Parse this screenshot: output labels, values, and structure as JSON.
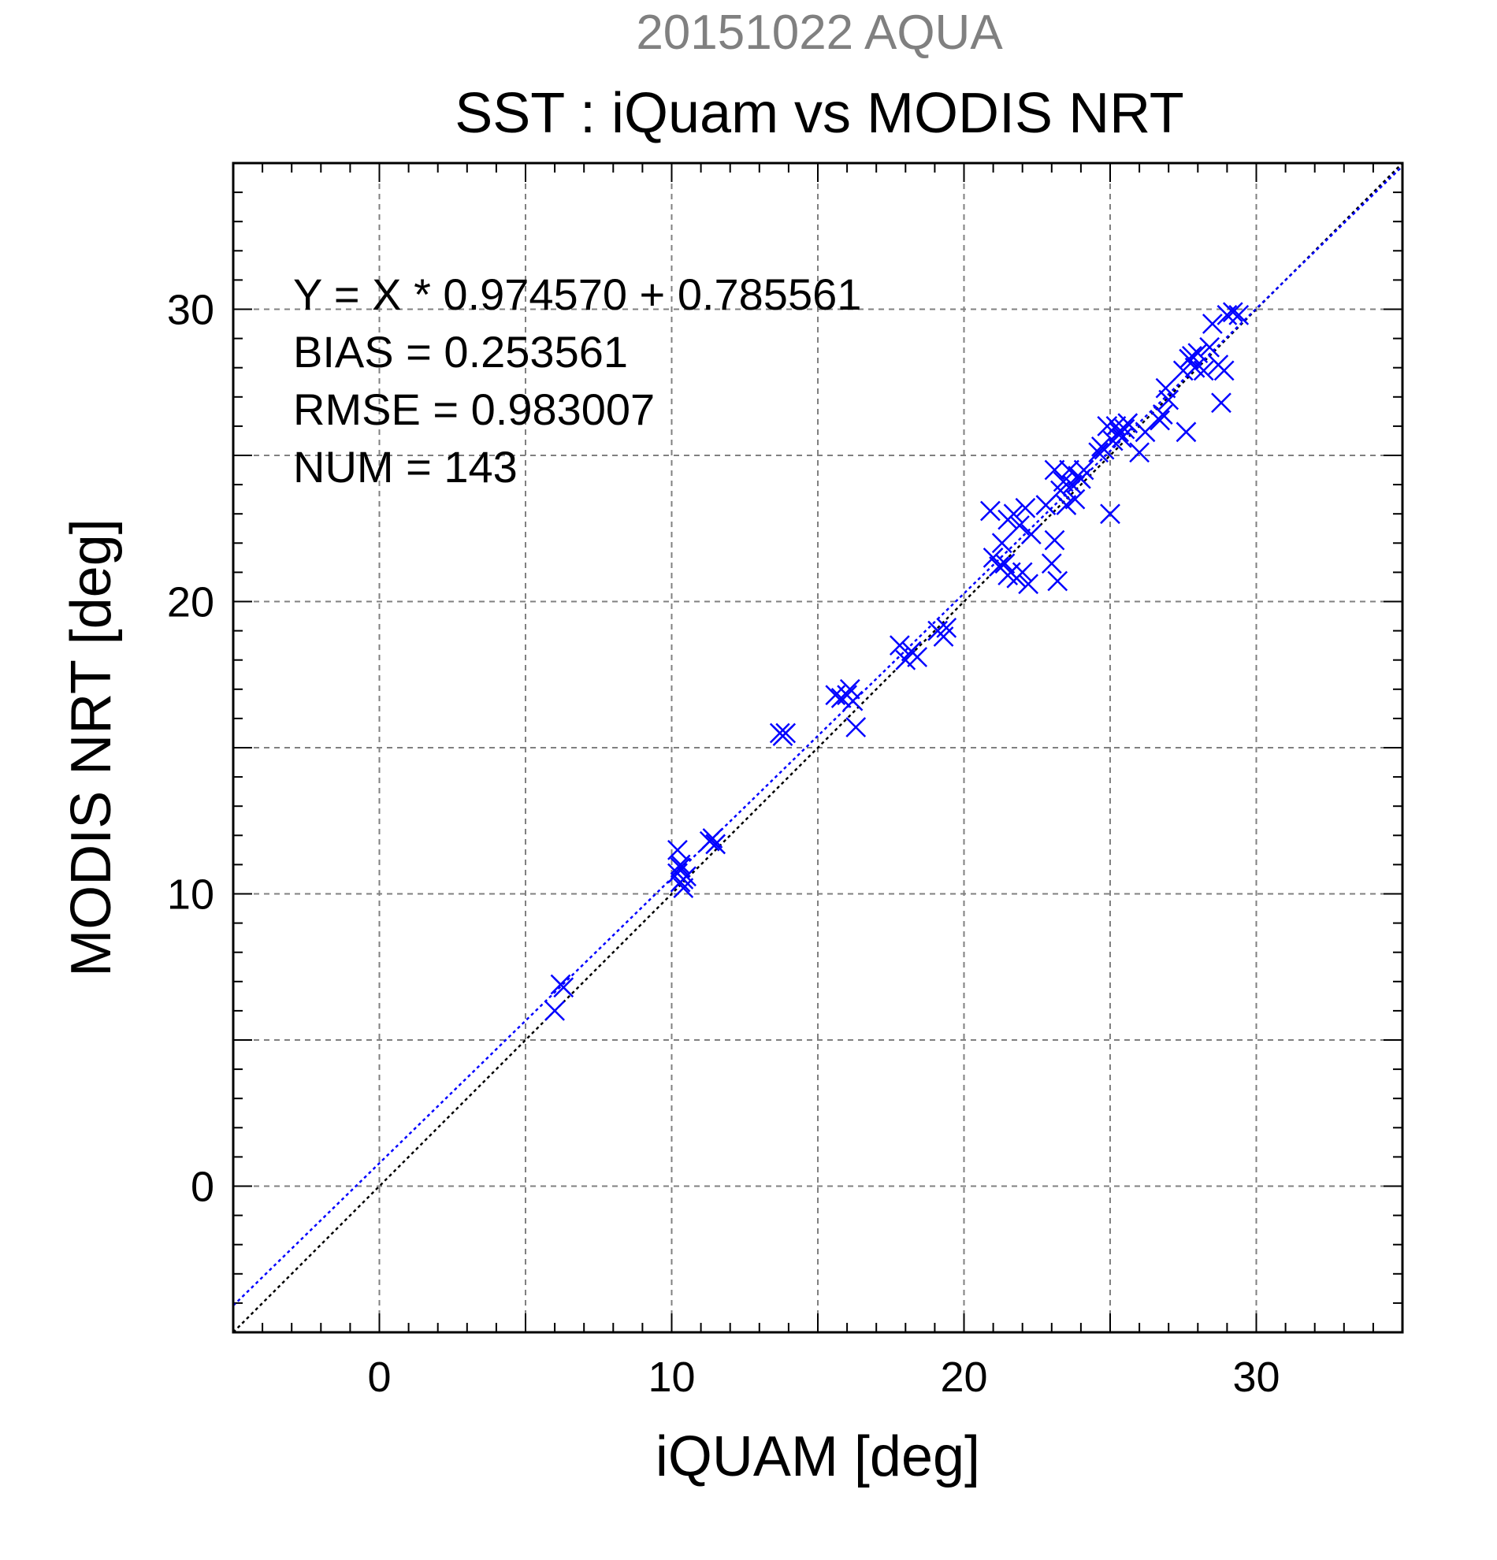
{
  "chart_data": {
    "type": "scatter",
    "supertitle": "20151022 AQUA",
    "title": "SST : iQuam vs MODIS NRT",
    "xlabel": "iQUAM [deg]",
    "ylabel": "MODIS NRT [deg]",
    "xlim": [
      -5,
      35
    ],
    "ylim": [
      -5,
      35
    ],
    "xticks": [
      0,
      10,
      20,
      30
    ],
    "yticks": [
      0,
      10,
      20,
      30
    ],
    "grid": true,
    "stats": [
      "Y = X * 0.974570 + 0.785561",
      "BIAS = 0.253561",
      "RMSE = 0.983007",
      "NUM = 143"
    ],
    "fit": {
      "slope": 0.97457,
      "intercept": 0.785561
    },
    "colors": {
      "supertitle": "#808080",
      "points": "#0000ff",
      "fit_line": "#0000ff",
      "identity_line": "#000000",
      "grid": "#808080"
    },
    "points": [
      [
        6.0,
        6.0
      ],
      [
        6.2,
        6.9
      ],
      [
        6.3,
        6.8
      ],
      [
        10.2,
        10.7
      ],
      [
        10.3,
        10.4
      ],
      [
        10.4,
        10.2
      ],
      [
        10.2,
        11.5
      ],
      [
        10.3,
        11.0
      ],
      [
        10.5,
        10.6
      ],
      [
        10.3,
        10.9
      ],
      [
        10.4,
        10.5
      ],
      [
        11.3,
        11.8
      ],
      [
        11.4,
        11.9
      ],
      [
        11.5,
        11.7
      ],
      [
        13.7,
        15.5
      ],
      [
        13.8,
        15.4
      ],
      [
        13.9,
        15.5
      ],
      [
        15.6,
        16.8
      ],
      [
        15.8,
        16.7
      ],
      [
        16.0,
        16.8
      ],
      [
        16.1,
        17.0
      ],
      [
        16.2,
        16.6
      ],
      [
        16.3,
        15.7
      ],
      [
        17.8,
        18.5
      ],
      [
        18.0,
        18.0
      ],
      [
        18.2,
        18.3
      ],
      [
        18.4,
        18.1
      ],
      [
        19.1,
        19.0
      ],
      [
        19.3,
        18.8
      ],
      [
        19.4,
        19.1
      ],
      [
        20.9,
        23.1
      ],
      [
        21.0,
        21.5
      ],
      [
        21.2,
        21.2
      ],
      [
        21.3,
        22.0
      ],
      [
        21.4,
        21.3
      ],
      [
        21.5,
        20.9
      ],
      [
        21.5,
        22.8
      ],
      [
        21.6,
        21.0
      ],
      [
        21.7,
        23.0
      ],
      [
        21.8,
        20.8
      ],
      [
        21.9,
        22.6
      ],
      [
        22.0,
        21.0
      ],
      [
        22.1,
        23.2
      ],
      [
        22.2,
        20.6
      ],
      [
        22.3,
        22.3
      ],
      [
        22.8,
        23.3
      ],
      [
        23.0,
        21.3
      ],
      [
        23.1,
        22.1
      ],
      [
        23.1,
        24.5
      ],
      [
        23.2,
        20.7
      ],
      [
        23.3,
        23.8
      ],
      [
        23.4,
        24.1
      ],
      [
        23.5,
        23.3
      ],
      [
        23.6,
        24.5
      ],
      [
        23.7,
        24.0
      ],
      [
        23.8,
        23.5
      ],
      [
        23.9,
        24.3
      ],
      [
        24.0,
        24.2
      ],
      [
        24.1,
        24.5
      ],
      [
        24.6,
        25.1
      ],
      [
        24.7,
        25.3
      ],
      [
        24.8,
        25.2
      ],
      [
        24.9,
        26.0
      ],
      [
        25.0,
        23.0
      ],
      [
        25.1,
        25.5
      ],
      [
        25.2,
        26.0
      ],
      [
        25.3,
        25.8
      ],
      [
        25.4,
        25.6
      ],
      [
        25.5,
        25.9
      ],
      [
        25.6,
        26.1
      ],
      [
        26.0,
        25.1
      ],
      [
        26.2,
        25.8
      ],
      [
        26.7,
        26.2
      ],
      [
        26.8,
        26.4
      ],
      [
        26.9,
        27.3
      ],
      [
        27.0,
        26.9
      ],
      [
        27.5,
        27.9
      ],
      [
        27.6,
        25.8
      ],
      [
        27.7,
        28.3
      ],
      [
        27.8,
        28.4
      ],
      [
        27.9,
        28.0
      ],
      [
        28.0,
        28.5
      ],
      [
        28.2,
        27.9
      ],
      [
        28.4,
        28.7
      ],
      [
        28.5,
        29.5
      ],
      [
        28.7,
        28.1
      ],
      [
        28.8,
        26.8
      ],
      [
        28.9,
        27.9
      ],
      [
        29.0,
        29.8
      ],
      [
        29.2,
        29.9
      ],
      [
        29.4,
        29.8
      ]
    ]
  }
}
